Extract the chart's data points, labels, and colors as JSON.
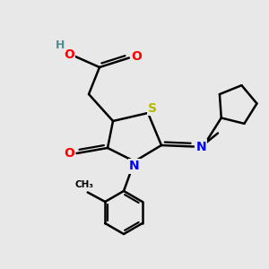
{
  "bg_color": "#e8e8e8",
  "atom_colors": {
    "C": "#000000",
    "H": "#4a9090",
    "O": "#ff0000",
    "N": "#0000ff",
    "S": "#b8b800"
  },
  "bond_color": "#000000",
  "bond_width": 1.8,
  "figsize": [
    3.0,
    3.0
  ],
  "dpi": 100
}
